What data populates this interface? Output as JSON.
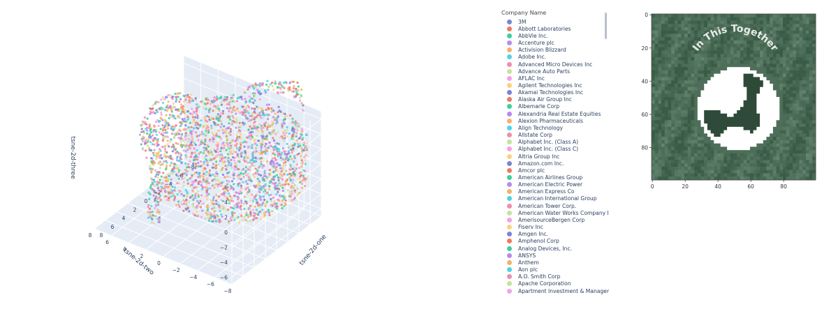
{
  "chart_data": [
    {
      "type": "scatter3d",
      "title": "",
      "xlabel": "tsne-2d-one",
      "ylabel": "tsne-2d-two",
      "zlabel": "tsne-2d-three",
      "x_ticks": [
        "−8",
        "−6",
        "−4",
        "−2",
        "0",
        "2",
        "4",
        "6",
        "8"
      ],
      "y_ticks": [
        "−8",
        "−6",
        "−4",
        "−2",
        "0",
        "2",
        "4",
        "6",
        "8"
      ],
      "z_ticks": [
        "−6",
        "−4",
        "−2",
        "0",
        "2",
        "4",
        "6"
      ],
      "xlim": [
        -8,
        8
      ],
      "ylim": [
        -8,
        8
      ],
      "zlim": [
        -7,
        7
      ],
      "grid": true,
      "legend": {
        "title": "Company Name",
        "placement": "right",
        "items": [
          {
            "name": "3M",
            "color": "#7b83d6"
          },
          {
            "name": "Abbott Laboratories",
            "color": "#ef7a62"
          },
          {
            "name": "AbbVie Inc.",
            "color": "#3ecf9e"
          },
          {
            "name": "Accenture plc",
            "color": "#b58af2"
          },
          {
            "name": "Activision Blizzard",
            "color": "#f6b06a"
          },
          {
            "name": "Adobe Inc.",
            "color": "#4fd3e8"
          },
          {
            "name": "Advanced Micro Devices Inc",
            "color": "#f08cb0"
          },
          {
            "name": "Advance Auto Parts",
            "color": "#c7e39a"
          },
          {
            "name": "AFLAC Inc",
            "color": "#f5a0e6"
          },
          {
            "name": "Agilent Technologies Inc",
            "color": "#f9d37a"
          },
          {
            "name": "Akamai Technologies Inc",
            "color": "#7b83d6"
          },
          {
            "name": "Alaska Air Group Inc",
            "color": "#ef7a62"
          },
          {
            "name": "Albemarle Corp",
            "color": "#3ecf9e"
          },
          {
            "name": "Alexandria Real Estate Equities",
            "color": "#b58af2"
          },
          {
            "name": "Alexion Pharmaceuticals",
            "color": "#f6b06a"
          },
          {
            "name": "Align Technology",
            "color": "#4fd3e8"
          },
          {
            "name": "Allstate Corp",
            "color": "#f08cb0"
          },
          {
            "name": "Alphabet Inc. (Class A)",
            "color": "#c7e39a"
          },
          {
            "name": "Alphabet Inc. (Class C)",
            "color": "#f5a0e6"
          },
          {
            "name": "Altria Group Inc",
            "color": "#f9d37a"
          },
          {
            "name": "Amazon.com Inc.",
            "color": "#7b83d6"
          },
          {
            "name": "Amcor plc",
            "color": "#ef7a62"
          },
          {
            "name": "American Airlines Group",
            "color": "#3ecf9e"
          },
          {
            "name": "American Electric Power",
            "color": "#b58af2"
          },
          {
            "name": "American Express Co",
            "color": "#f6b06a"
          },
          {
            "name": "American International Group",
            "color": "#4fd3e8"
          },
          {
            "name": "American Tower Corp.",
            "color": "#f08cb0"
          },
          {
            "name": "American Water Works Company Inc",
            "color": "#c7e39a"
          },
          {
            "name": "AmerisourceBergen Corp",
            "color": "#f5a0e6"
          },
          {
            "name": "Fiserv Inc",
            "color": "#f9d37a"
          },
          {
            "name": "Amgen Inc.",
            "color": "#7b83d6"
          },
          {
            "name": "Amphenol Corp",
            "color": "#ef7a62"
          },
          {
            "name": "Analog Devices, Inc.",
            "color": "#3ecf9e"
          },
          {
            "name": "ANSYS",
            "color": "#b58af2"
          },
          {
            "name": "Anthem",
            "color": "#f6b06a"
          },
          {
            "name": "Aon plc",
            "color": "#4fd3e8"
          },
          {
            "name": "A.O. Smith Corp",
            "color": "#f08cb0"
          },
          {
            "name": "Apache Corporation",
            "color": "#c7e39a"
          },
          {
            "name": "Apartment Investment & Management",
            "color": "#f5a0e6"
          }
        ]
      }
    },
    {
      "type": "heatmap",
      "image_text": "In This Together",
      "x_ticks": [
        "0",
        "20",
        "40",
        "60",
        "80"
      ],
      "y_ticks": [
        "0",
        "20",
        "40",
        "60",
        "80"
      ],
      "xlim": [
        0,
        99
      ],
      "ylim": [
        0,
        99
      ],
      "colors": {
        "ground": "#3a5c46",
        "ground_light": "#6f8f7a",
        "globe": "#ffffff",
        "ring": "#e8ece9"
      }
    }
  ]
}
